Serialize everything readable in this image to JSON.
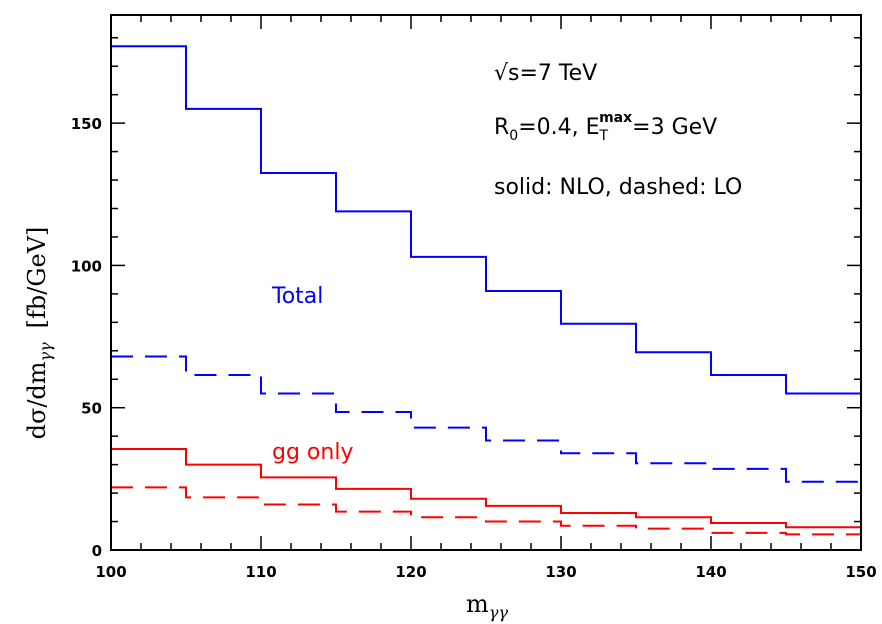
{
  "chart_data": {
    "type": "line",
    "xlabel": "m",
    "xlabel_sub": "γγ",
    "ylabel": "dσ/dm",
    "ylabel_sub": "γγ",
    "ylabel_unit": "[fb/GeV]",
    "xlim": [
      100,
      150
    ],
    "ylim": [
      0,
      188
    ],
    "x_ticks": [
      100,
      110,
      120,
      130,
      140,
      150
    ],
    "x_tick_labels": [
      "100",
      "110",
      "120",
      "130",
      "140",
      "150"
    ],
    "y_ticks": [
      0,
      50,
      100,
      150
    ],
    "y_tick_labels": [
      "0",
      "50",
      "100",
      "150"
    ],
    "bin_edges": [
      100,
      105,
      110,
      115,
      120,
      125,
      130,
      135,
      140,
      145,
      150
    ],
    "series": [
      {
        "values": [
          177,
          155,
          132.5,
          119,
          103,
          91,
          79.5,
          69.5,
          61.5,
          55
        ],
        "color": "#0000ff",
        "style": "solid"
      },
      {
        "values": [
          68,
          61.5,
          55,
          48.5,
          43,
          38.5,
          34,
          30.5,
          28.5,
          24
        ],
        "color": "#0000ff",
        "style": "dashed"
      },
      {
        "values": [
          35.5,
          30,
          25.5,
          21.5,
          18,
          15.5,
          13,
          11.5,
          9.5,
          8
        ],
        "color": "#ff0000",
        "style": "solid"
      },
      {
        "values": [
          22,
          18.5,
          16,
          13.5,
          11.5,
          10,
          8.5,
          7.5,
          6,
          5.5
        ],
        "color": "#ff0000",
        "style": "dashed"
      }
    ],
    "annotations": {
      "energy_prefix": "√s=7  TeV",
      "r0_base": "R",
      "r0_sub": "0",
      "r0_rest": "=0.4,  E",
      "et_sub": "T",
      "et_sup": "max",
      "et_rest": "=3  GeV",
      "style_note": "solid:  NLO,  dashed:  LO"
    },
    "labels": {
      "total": "Total",
      "total_color": "#0000ff",
      "gg": "gg  only",
      "gg_color": "#ff0000"
    }
  }
}
